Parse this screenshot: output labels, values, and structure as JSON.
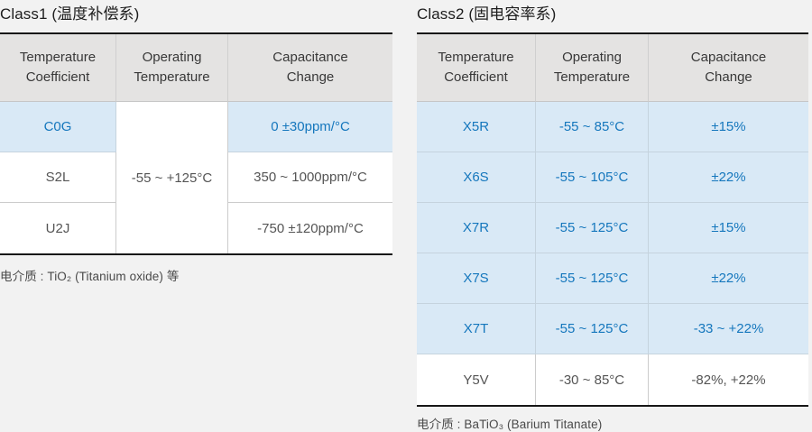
{
  "colors": {
    "page_bg": "#f2f2f2",
    "header_bg": "#e4e3e2",
    "highlight_bg": "#d9e9f6",
    "accent_blue": "#1577bd",
    "thick_border": "#161616"
  },
  "class1": {
    "title": "Class1 (温度补偿系)",
    "headers": [
      "Temperature\nCoefficient",
      "Operating\nTemperature",
      "Capacitance\nChange"
    ],
    "operating_temperature": "-55 ~ +125°C",
    "rows": [
      {
        "coefficient": "C0G",
        "capacitance": "0 ±30ppm/°C",
        "highlight": true
      },
      {
        "coefficient": "S2L",
        "capacitance": "350 ~ 1000ppm/°C",
        "highlight": false
      },
      {
        "coefficient": "U2J",
        "capacitance": "-750 ±120ppm/°C",
        "highlight": false
      }
    ],
    "footnote": "电介质 : TiO₂ (Titanium oxide) 等"
  },
  "class2": {
    "title": "Class2 (固电容率系)",
    "headers": [
      "Temperature\nCoefficient",
      "Operating\nTemperature",
      "Capacitance\nChange"
    ],
    "rows": [
      {
        "coefficient": "X5R",
        "operating": "-55 ~ 85°C",
        "capacitance": "±15%",
        "highlight": true
      },
      {
        "coefficient": "X6S",
        "operating": "-55 ~ 105°C",
        "capacitance": "±22%",
        "highlight": true
      },
      {
        "coefficient": "X7R",
        "operating": "-55 ~ 125°C",
        "capacitance": "±15%",
        "highlight": true
      },
      {
        "coefficient": "X7S",
        "operating": "-55 ~ 125°C",
        "capacitance": "±22%",
        "highlight": true
      },
      {
        "coefficient": "X7T",
        "operating": "-55 ~ 125°C",
        "capacitance": "-33 ~ +22%",
        "highlight": true
      },
      {
        "coefficient": "Y5V",
        "operating": "-30 ~ 85°C",
        "capacitance": "-82%, +22%",
        "highlight": false
      }
    ],
    "footnote": "电介质 : BaTiO₃ (Barium Titanate)"
  }
}
